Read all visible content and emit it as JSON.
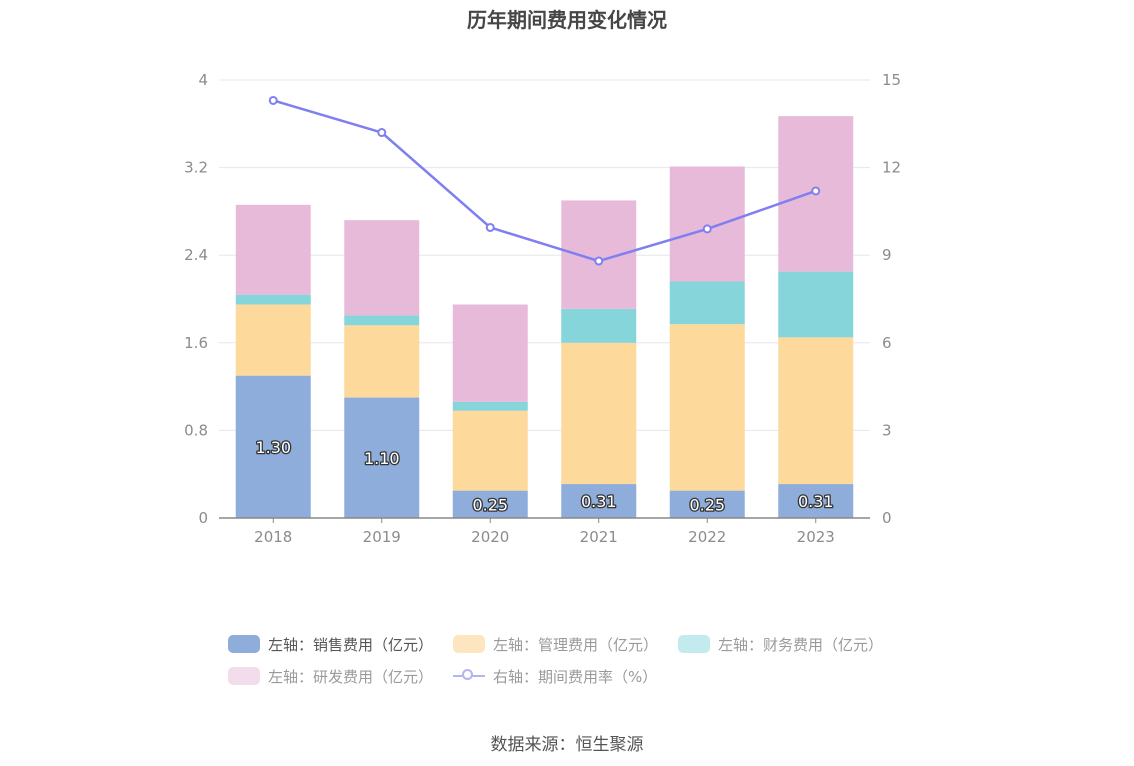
{
  "title": "历年期间费用变化情况",
  "source": "数据来源：恒生聚源",
  "colors": {
    "sales": "#8eaddb",
    "admin": "#fdd99b",
    "finance": "#86d5da",
    "rd": "#e7bada",
    "rate": "#7f7ff0",
    "axis_text": "#8c8c8c",
    "grid": "#e6e6f0"
  },
  "legend": [
    {
      "label": "左轴：销售费用（亿元）",
      "color": "#8eaddb",
      "kind": "bar"
    },
    {
      "label": "左轴：管理费用（亿元）",
      "color": "#fde6bf",
      "kind": "bar",
      "dim": true
    },
    {
      "label": "左轴：财务费用（亿元）",
      "color": "#c3ebee",
      "kind": "bar",
      "dim": true
    },
    {
      "label": "左轴：研发费用（亿元）",
      "color": "#f3dcec",
      "kind": "bar",
      "dim": true
    },
    {
      "label": "右轴：期间费用率（%）",
      "color": "#b3b3f5",
      "kind": "line",
      "dim": true
    }
  ],
  "chart_data": {
    "type": "bar",
    "stacked": true,
    "categories": [
      "2018",
      "2019",
      "2020",
      "2021",
      "2022",
      "2023"
    ],
    "series": [
      {
        "name": "左轴：销售费用（亿元）",
        "axis": "left",
        "values": [
          1.3,
          1.1,
          0.25,
          0.31,
          0.25,
          0.31
        ],
        "labels": [
          "1.30",
          "1.10",
          "0.25",
          "0.31",
          "0.25",
          "0.31"
        ]
      },
      {
        "name": "左轴：管理费用（亿元）",
        "axis": "left",
        "values": [
          0.65,
          0.66,
          0.73,
          1.29,
          1.52,
          1.34
        ]
      },
      {
        "name": "左轴：财务费用（亿元）",
        "axis": "left",
        "values": [
          0.09,
          0.09,
          0.08,
          0.31,
          0.39,
          0.6
        ]
      },
      {
        "name": "左轴：研发费用（亿元）",
        "axis": "left",
        "values": [
          0.82,
          0.87,
          0.89,
          0.99,
          1.05,
          1.42
        ]
      },
      {
        "name": "右轴：期间费用率（%）",
        "axis": "right",
        "type": "line",
        "values": [
          14.3,
          13.2,
          9.95,
          8.8,
          9.9,
          11.2
        ]
      }
    ],
    "y_left": {
      "min": 0,
      "max": 4,
      "ticks": [
        "0",
        "0.8",
        "1.6",
        "2.4",
        "3.2",
        "4"
      ]
    },
    "y_right": {
      "min": 0,
      "max": 15,
      "ticks": [
        "0",
        "3",
        "6",
        "9",
        "12",
        "15"
      ]
    },
    "grid": true,
    "legend_position": "bottom"
  }
}
